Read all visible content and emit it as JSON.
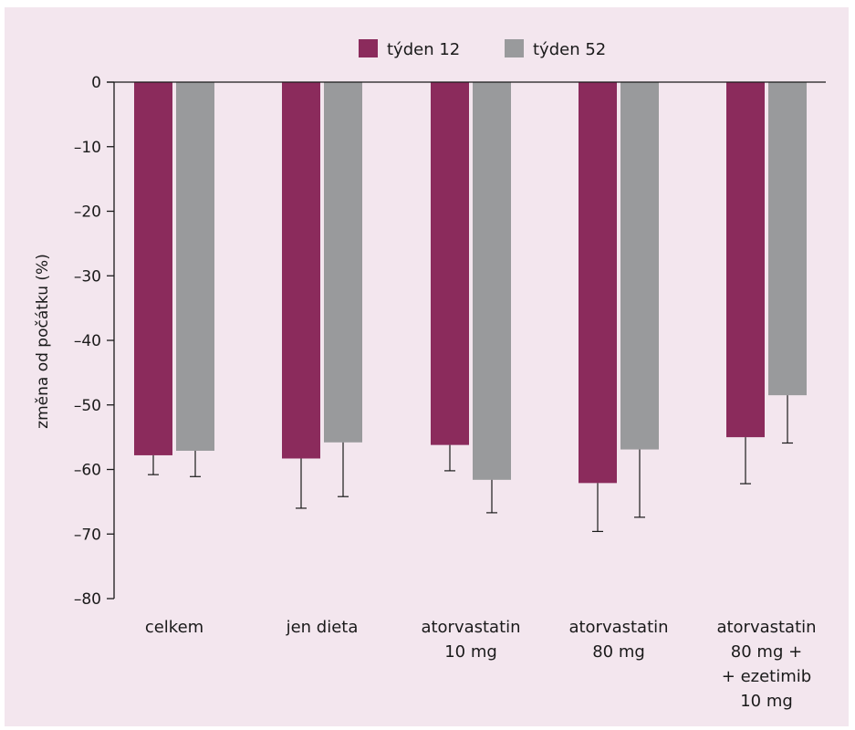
{
  "chart_data": {
    "type": "bar",
    "ylabel": "změna od počátku (%)",
    "ylim": [
      -80,
      0
    ],
    "yticks": [
      0,
      -10,
      -20,
      -30,
      -40,
      -50,
      -60,
      -70,
      -80
    ],
    "ytick_labels": [
      "0",
      "–10",
      "–20",
      "–30",
      "–40",
      "–50",
      "–60",
      "–70",
      "–80"
    ],
    "categories": [
      [
        "celkem"
      ],
      [
        "jen dieta"
      ],
      [
        "atorvastatin",
        "10 mg"
      ],
      [
        "atorvastatin",
        "80 mg"
      ],
      [
        "atorvastatin",
        "80 mg +",
        "+ ezetimib",
        "10 mg"
      ]
    ],
    "series": [
      {
        "name": "týden 12",
        "color": "#8b2b5c",
        "values": [
          -57.8,
          -58.3,
          -56.2,
          -62.1,
          -55.0
        ],
        "errors": [
          3.0,
          7.7,
          4.0,
          7.5,
          7.2
        ]
      },
      {
        "name": "týden 52",
        "color": "#999a9c",
        "values": [
          -57.1,
          -55.8,
          -61.6,
          -56.9,
          -48.5
        ],
        "errors": [
          4.0,
          8.4,
          5.1,
          10.5,
          7.4
        ]
      }
    ],
    "legend_position": "top"
  }
}
